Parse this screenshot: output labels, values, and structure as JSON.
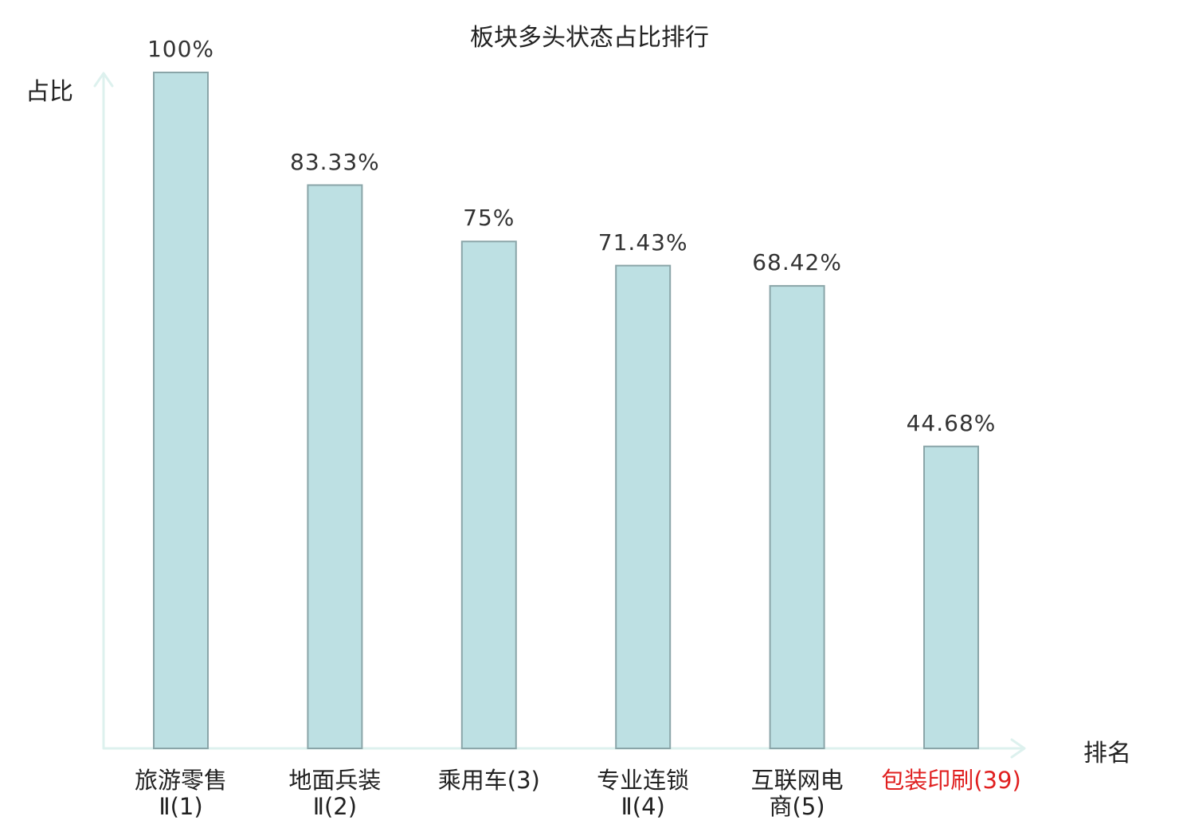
{
  "chart_data": {
    "type": "bar",
    "title": "板块多头状态占比排行",
    "ylabel": "占比",
    "xlabel": "排名",
    "ylim": [
      0,
      100
    ],
    "grid": false,
    "categories": [
      [
        "旅游零售",
        "Ⅱ(1)"
      ],
      [
        "地面兵装",
        "Ⅱ(2)"
      ],
      [
        "乘用车(3)"
      ],
      [
        "专业连锁",
        "Ⅱ(4)"
      ],
      [
        "互联网电",
        "商(5)"
      ],
      [
        "包装印刷(39)"
      ]
    ],
    "values": [
      100,
      83.33,
      75,
      71.43,
      68.42,
      44.68
    ],
    "data_labels": [
      "100%",
      "83.33%",
      "75%",
      "71.43%",
      "68.42%",
      "44.68%"
    ],
    "highlight_index": 5,
    "colors": {
      "bar_fill": "#bde0e3",
      "bar_stroke": "#8aa5a8",
      "axis": "#ddf1ee",
      "highlight_text": "#e02020"
    }
  }
}
